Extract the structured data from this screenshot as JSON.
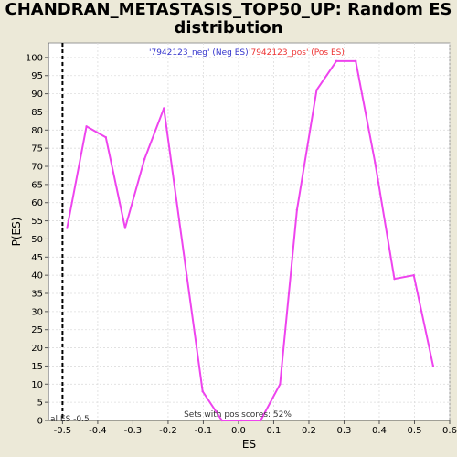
{
  "chart_data": {
    "type": "line",
    "title_line1": "CHANDRAN_METASTASIS_TOP50_UP: Random ES",
    "title_line2": "distribution",
    "xlabel": "ES",
    "ylabel": "P(ES)",
    "xlim": [
      -0.54,
      0.6
    ],
    "ylim": [
      0,
      104
    ],
    "x_ticks": [
      -0.5,
      -0.4,
      -0.3,
      -0.2,
      -0.1,
      0.0,
      0.1,
      0.2,
      0.3,
      0.4,
      0.5,
      0.6
    ],
    "x_tick_labels": [
      "-0.5",
      "-0.4",
      "-0.3",
      "-0.2",
      "-0.1",
      "0.0",
      "0.1",
      "0.2",
      "0.3",
      "0.4",
      "0.5",
      "0.6"
    ],
    "y_ticks": [
      0,
      5,
      10,
      15,
      20,
      25,
      30,
      35,
      40,
      45,
      50,
      55,
      60,
      65,
      70,
      75,
      80,
      85,
      90,
      95,
      100
    ],
    "grid": true,
    "series": [
      {
        "color": "#ee44ee",
        "x": [
          -0.487,
          -0.432,
          -0.377,
          -0.322,
          -0.267,
          -0.212,
          -0.157,
          -0.102,
          -0.047,
          0.008,
          0.063,
          0.118,
          0.166,
          0.222,
          0.278,
          0.333,
          0.388,
          0.443,
          0.498,
          0.553
        ],
        "y": [
          53,
          81,
          78,
          53,
          72,
          86,
          47,
          8,
          0,
          0,
          0,
          10,
          58,
          91,
          99,
          99,
          71,
          39,
          40,
          15
        ]
      }
    ],
    "actual_es": {
      "value": -0.5,
      "label": "al ES -0.5",
      "color": "#000000"
    },
    "legend": [
      {
        "label": "'7942123_neg' (Neg ES)",
        "color": "#3333cc"
      },
      {
        "label": "'7942123_pos' (Pos ES)",
        "color": "#ee3333"
      }
    ],
    "annotation": "Sets with pos scores: 52%",
    "legend_placement": "top-center"
  }
}
